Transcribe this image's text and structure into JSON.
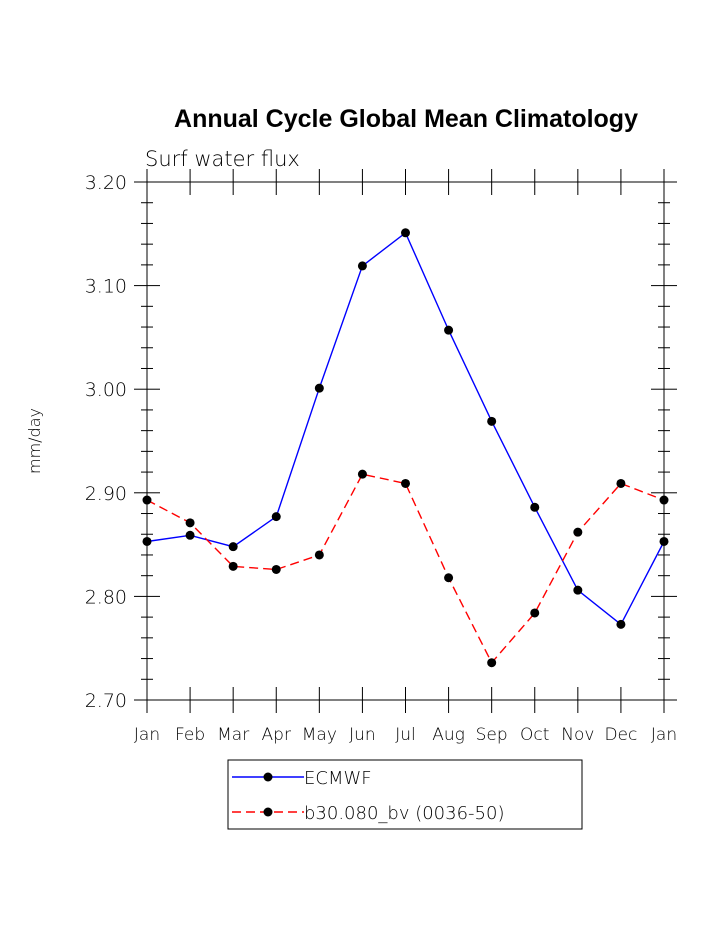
{
  "chart_data": {
    "type": "line",
    "title": "Annual Cycle Global Mean Climatology",
    "subtitle": "Surf water flux",
    "xlabel": "",
    "ylabel": "mm/day",
    "ylim": [
      2.7,
      3.2
    ],
    "yticks": [
      "2.70",
      "2.80",
      "2.90",
      "3.00",
      "3.10",
      "3.20"
    ],
    "categories": [
      "Jan",
      "Feb",
      "Mar",
      "Apr",
      "May",
      "Jun",
      "Jul",
      "Aug",
      "Sep",
      "Oct",
      "Nov",
      "Dec",
      "Jan"
    ],
    "series": [
      {
        "name": "ECMWF",
        "color": "#0000ff",
        "dash": "solid",
        "values": [
          2.853,
          2.859,
          2.848,
          2.877,
          3.001,
          3.119,
          3.151,
          3.057,
          2.969,
          2.886,
          2.806,
          2.773,
          2.853
        ]
      },
      {
        "name": "b30.080_bv (0036-50)",
        "color": "#ff0000",
        "dash": "dashed",
        "values": [
          2.893,
          2.871,
          2.829,
          2.826,
          2.84,
          2.918,
          2.909,
          2.818,
          2.736,
          2.784,
          2.862,
          2.909,
          2.893
        ]
      }
    ],
    "grid": false,
    "legend": "bottom-center"
  }
}
